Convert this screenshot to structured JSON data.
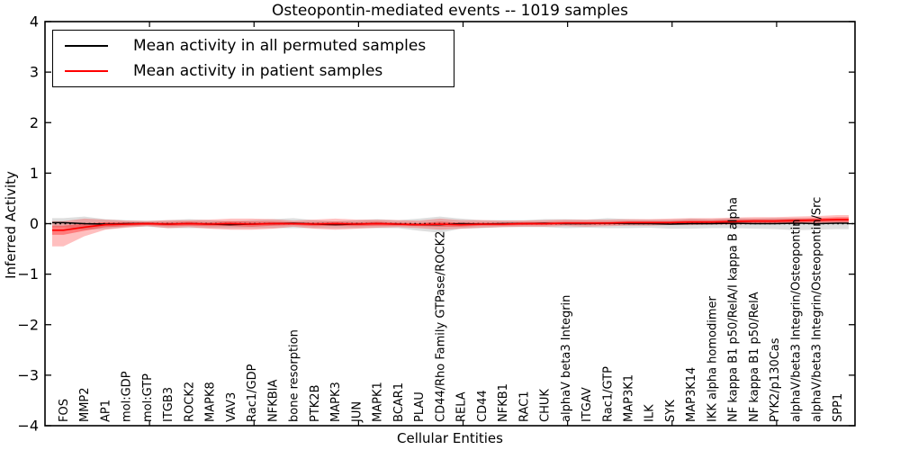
{
  "title": "Osteopontin-mediated events -- 1019 samples",
  "colors": {
    "permuted_line": "#000000",
    "patient_line": "#ff0000",
    "permuted_band": "rgba(0,0,0,0.13)",
    "patient_band_outer": "rgba(255,0,0,0.25)",
    "patient_band_inner": "rgba(255,0,0,0.35)",
    "axis": "#000000",
    "background": "#ffffff"
  },
  "chart_data": {
    "type": "line",
    "title": "Osteopontin-mediated events -- 1019 samples",
    "xlabel": "Cellular Entities",
    "ylabel": "Inferred Activity",
    "ylim": [
      -4,
      4
    ],
    "yticks": [
      -4,
      -3,
      -2,
      -1,
      0,
      1,
      2,
      3,
      4
    ],
    "grid": false,
    "zero_line": true,
    "legend_position": "upper left",
    "categories": [
      "FOS",
      "MMP2",
      "AP1",
      "mol:GDP",
      "mol:GTP",
      "ITGB3",
      "ROCK2",
      "MAPK8",
      "VAV3",
      "Rac1/GDP",
      "NFKBIA",
      "bone resorption",
      "PTK2B",
      "MAPK3",
      "JUN",
      "MAPK1",
      "BCAR1",
      "PLAU",
      "CD44/Rho Family GTPase/ROCK2",
      "RELA",
      "CD44",
      "NFKB1",
      "RAC1",
      "CHUK",
      "alphaV beta3 Integrin",
      "ITGAV",
      "Rac1/GTP",
      "MAP3K1",
      "ILK",
      "SYK",
      "MAP3K14",
      "IKK alpha homodimer",
      "NF kappa B1 p50/RelA/I kappa B alpha",
      "NF kappa B1 p50/RelA",
      "PYK2/p130Cas",
      "alphaV/beta3 Integrin/Osteopontin",
      "alphaV/beta3 Integrin/Osteopontin/Src",
      "SPP1"
    ],
    "series": [
      {
        "name": "Mean activity in all permuted samples",
        "color": "#000000",
        "band_color": "rgba(0,0,0,0.13)",
        "values": [
          0.02,
          0.0,
          -0.01,
          0.0,
          0.0,
          -0.01,
          0.0,
          -0.01,
          -0.02,
          -0.01,
          0.0,
          0.01,
          -0.01,
          -0.02,
          -0.01,
          0.0,
          -0.01,
          -0.02,
          -0.02,
          0.0,
          -0.01,
          0.0,
          0.0,
          0.01,
          0.0,
          0.0,
          0.01,
          0.0,
          0.0,
          -0.01,
          0.0,
          0.0,
          0.01,
          0.0,
          0.0,
          0.01,
          0.0,
          0.01
        ],
        "band_upper": [
          0.11,
          0.14,
          0.09,
          0.07,
          0.06,
          0.07,
          0.09,
          0.07,
          0.05,
          0.07,
          0.09,
          0.11,
          0.07,
          0.05,
          0.07,
          0.09,
          0.07,
          0.1,
          0.14,
          0.1,
          0.07,
          0.07,
          0.07,
          0.09,
          0.09,
          0.08,
          0.11,
          0.09,
          0.08,
          0.08,
          0.1,
          0.09,
          0.11,
          0.1,
          0.11,
          0.11,
          0.1,
          0.09
        ],
        "band_lower": [
          -0.07,
          -0.12,
          -0.11,
          -0.07,
          -0.06,
          -0.09,
          -0.09,
          -0.09,
          -0.09,
          -0.09,
          -0.09,
          -0.09,
          -0.09,
          -0.09,
          -0.09,
          -0.09,
          -0.09,
          -0.14,
          -0.18,
          -0.1,
          -0.09,
          -0.07,
          -0.07,
          -0.07,
          -0.09,
          -0.08,
          -0.09,
          -0.09,
          -0.08,
          -0.1,
          -0.1,
          -0.09,
          -0.09,
          -0.1,
          -0.11,
          -0.13,
          -0.12,
          -0.11
        ]
      },
      {
        "name": "Mean activity in patient samples",
        "color": "#ff0000",
        "band_color": "rgba(255,0,0,0.25)",
        "inner_band_color": "rgba(255,0,0,0.35)",
        "values": [
          -0.13,
          -0.07,
          -0.02,
          -0.01,
          0.0,
          -0.01,
          0.0,
          -0.01,
          0.0,
          -0.01,
          0.0,
          0.0,
          -0.01,
          0.0,
          -0.01,
          0.0,
          -0.01,
          -0.02,
          -0.01,
          -0.02,
          -0.01,
          -0.01,
          0.0,
          0.0,
          0.01,
          0.01,
          0.01,
          0.02,
          0.02,
          0.02,
          0.03,
          0.03,
          0.04,
          0.05,
          0.05,
          0.06,
          0.07,
          0.08
        ],
        "band_upper": [
          0.05,
          0.1,
          0.08,
          0.06,
          0.05,
          0.07,
          0.07,
          0.08,
          0.1,
          0.1,
          0.09,
          0.06,
          0.08,
          0.1,
          0.08,
          0.08,
          0.07,
          0.06,
          0.1,
          0.07,
          0.07,
          0.06,
          0.06,
          0.07,
          0.08,
          0.08,
          0.08,
          0.09,
          0.09,
          0.1,
          0.11,
          0.11,
          0.12,
          0.13,
          0.13,
          0.14,
          0.15,
          0.17
        ],
        "band_lower": [
          -0.45,
          -0.25,
          -0.12,
          -0.08,
          -0.05,
          -0.09,
          -0.07,
          -0.1,
          -0.12,
          -0.12,
          -0.1,
          -0.06,
          -0.1,
          -0.12,
          -0.1,
          -0.08,
          -0.07,
          -0.09,
          -0.12,
          -0.1,
          -0.08,
          -0.07,
          -0.06,
          -0.06,
          -0.05,
          -0.06,
          -0.05,
          -0.04,
          -0.04,
          -0.03,
          -0.03,
          -0.02,
          -0.02,
          -0.01,
          0.0,
          0.0,
          0.01,
          0.02
        ],
        "inner_upper": [
          -0.04,
          0.0,
          0.03,
          0.03,
          0.03,
          0.03,
          0.04,
          0.03,
          0.05,
          0.04,
          0.04,
          0.03,
          0.03,
          0.04,
          0.03,
          0.04,
          0.02,
          0.01,
          0.04,
          0.02,
          0.02,
          0.02,
          0.03,
          0.03,
          0.04,
          0.04,
          0.04,
          0.05,
          0.05,
          0.05,
          0.07,
          0.07,
          0.08,
          0.09,
          0.09,
          0.1,
          0.11,
          0.13
        ],
        "inner_lower": [
          -0.22,
          -0.14,
          -0.07,
          -0.05,
          -0.03,
          -0.05,
          -0.04,
          -0.05,
          -0.05,
          -0.06,
          -0.04,
          -0.03,
          -0.05,
          -0.04,
          -0.05,
          -0.04,
          -0.04,
          -0.05,
          -0.06,
          -0.06,
          -0.04,
          -0.04,
          -0.03,
          -0.03,
          -0.02,
          -0.02,
          -0.02,
          -0.01,
          -0.01,
          -0.01,
          -0.01,
          -0.01,
          0.0,
          0.01,
          0.01,
          0.02,
          0.03,
          0.03
        ]
      }
    ]
  }
}
